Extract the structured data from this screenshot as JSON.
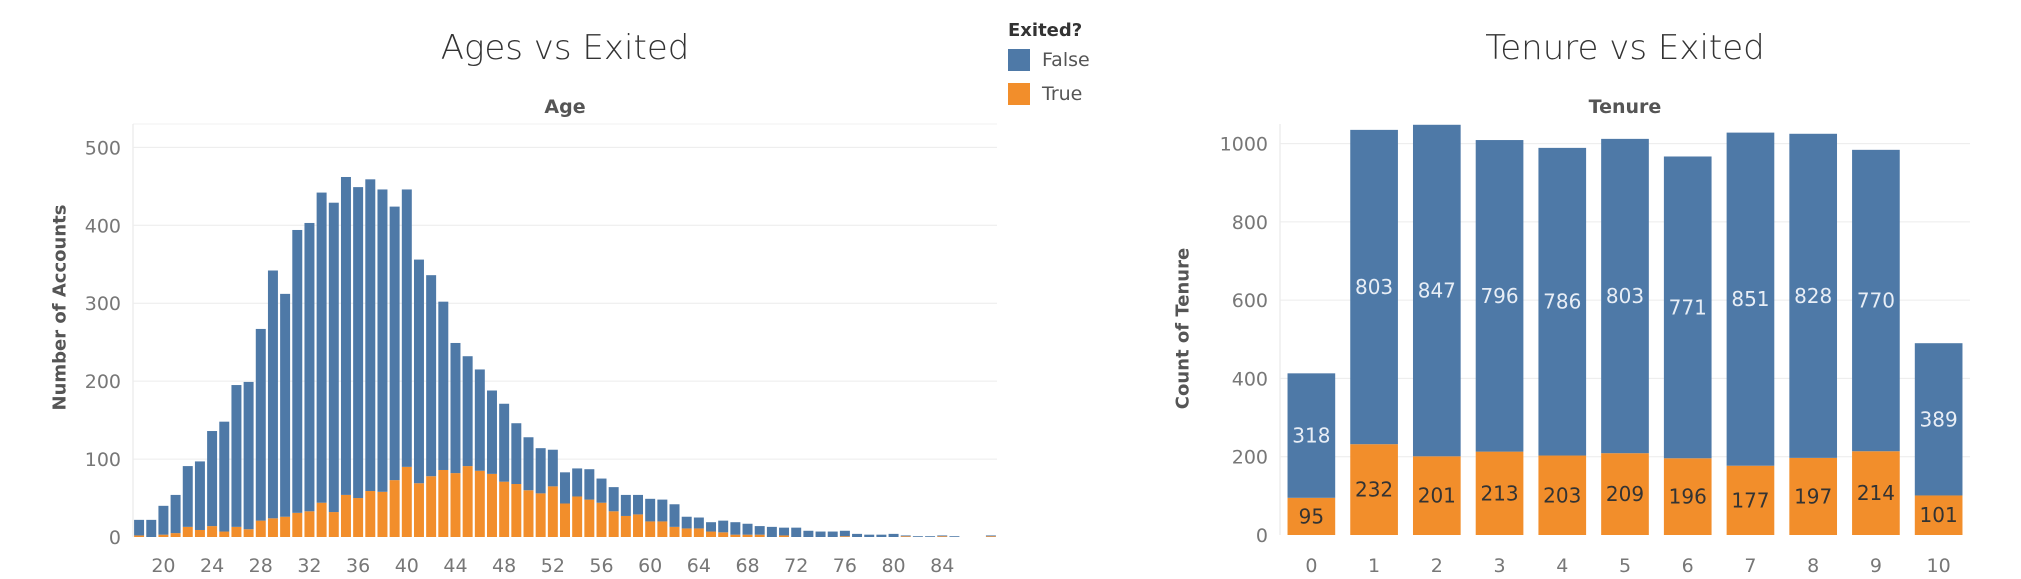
{
  "legend": {
    "title": "Exited?",
    "items": [
      {
        "label": "False",
        "color": "#4e79a7"
      },
      {
        "label": "True",
        "color": "#f28e2b"
      }
    ]
  },
  "chart_data": [
    {
      "type": "bar",
      "stacked": true,
      "title": "Ages vs Exited",
      "xlabel": "Age",
      "ylabel": "Number of Accounts",
      "ylim": [
        0,
        500
      ],
      "yticks": [
        0,
        100,
        200,
        300,
        400,
        500
      ],
      "xticks": [
        20,
        24,
        28,
        32,
        36,
        40,
        44,
        48,
        52,
        56,
        60,
        64,
        68,
        72,
        76,
        80,
        84
      ],
      "x": [
        18,
        19,
        20,
        21,
        22,
        23,
        24,
        25,
        26,
        27,
        28,
        29,
        30,
        31,
        32,
        33,
        34,
        35,
        36,
        37,
        38,
        39,
        40,
        41,
        42,
        43,
        44,
        45,
        46,
        47,
        48,
        49,
        50,
        51,
        52,
        53,
        54,
        55,
        56,
        57,
        58,
        59,
        60,
        61,
        62,
        63,
        64,
        65,
        66,
        67,
        68,
        69,
        70,
        71,
        72,
        73,
        74,
        75,
        76,
        77,
        78,
        79,
        80,
        81,
        82,
        83,
        84,
        85,
        86,
        87,
        88
      ],
      "series": [
        {
          "name": "False",
          "values": [
            20,
            22,
            37,
            49,
            78,
            88,
            122,
            141,
            182,
            189,
            246,
            318,
            286,
            363,
            370,
            398,
            397,
            408,
            399,
            400,
            388,
            351,
            356,
            287,
            258,
            216,
            167,
            141,
            130,
            107,
            100,
            78,
            68,
            58,
            47,
            40,
            36,
            39,
            31,
            31,
            27,
            25,
            29,
            28,
            29,
            15,
            14,
            12,
            15,
            16,
            14,
            11,
            13,
            10,
            12,
            8,
            7,
            7,
            7,
            4,
            3,
            3,
            4,
            1,
            1,
            1,
            1,
            1,
            0,
            0,
            1
          ]
        },
        {
          "name": "True",
          "values": [
            2,
            0,
            3,
            5,
            13,
            9,
            14,
            7,
            13,
            10,
            21,
            24,
            26,
            31,
            33,
            44,
            32,
            54,
            50,
            59,
            58,
            73,
            90,
            69,
            78,
            86,
            82,
            91,
            85,
            81,
            71,
            68,
            60,
            56,
            65,
            43,
            52,
            48,
            44,
            33,
            27,
            29,
            20,
            20,
            13,
            11,
            11,
            7,
            6,
            3,
            3,
            3,
            0,
            2,
            0,
            0,
            0,
            0,
            1,
            0,
            0,
            0,
            0,
            1,
            0,
            0,
            1,
            0,
            0,
            0,
            1
          ]
        }
      ]
    },
    {
      "type": "bar",
      "stacked": true,
      "title": "Tenure vs Exited",
      "xlabel": "Tenure",
      "ylabel": "Count of Tenure",
      "ylim": [
        0,
        1050
      ],
      "yticks": [
        0,
        200,
        400,
        600,
        800,
        1000
      ],
      "categories": [
        "0",
        "1",
        "2",
        "3",
        "4",
        "5",
        "6",
        "7",
        "8",
        "9",
        "10"
      ],
      "series": [
        {
          "name": "False",
          "values": [
            318,
            803,
            847,
            796,
            786,
            803,
            771,
            851,
            828,
            770,
            389
          ]
        },
        {
          "name": "True",
          "values": [
            95,
            232,
            201,
            213,
            203,
            209,
            196,
            177,
            197,
            214,
            101
          ]
        }
      ]
    }
  ]
}
